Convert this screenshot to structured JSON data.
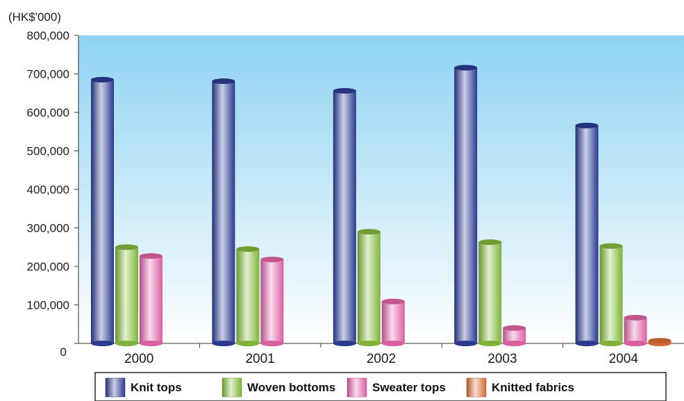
{
  "chart_data": {
    "type": "bar",
    "unit_label": "(HK$'000)",
    "categories": [
      "2000",
      "2001",
      "2002",
      "2003",
      "2004"
    ],
    "series": [
      {
        "name": "Knit tops",
        "values": [
          685000,
          681000,
          656000,
          716000,
          566000
        ],
        "color": "#2e3f9e"
      },
      {
        "name": "Woven bottoms",
        "values": [
          250000,
          245000,
          290000,
          263000,
          253000
        ],
        "color": "#8cc63f"
      },
      {
        "name": "Sweater tops",
        "values": [
          227000,
          218000,
          109000,
          40000,
          67000
        ],
        "color": "#f06ab4"
      },
      {
        "name": "Knitted fabrics",
        "values": [
          0,
          0,
          0,
          0,
          7000
        ],
        "color": "#e8763a"
      }
    ],
    "yticks": [
      "0",
      "100,000",
      "200,000",
      "300,000",
      "400,000",
      "500,000",
      "600,000",
      "700,000",
      "800,000"
    ],
    "ylim": [
      0,
      800000
    ],
    "plot_background": {
      "top": "#8fd3f2",
      "bottom": "#ffffff"
    },
    "legend_position": "bottom"
  }
}
